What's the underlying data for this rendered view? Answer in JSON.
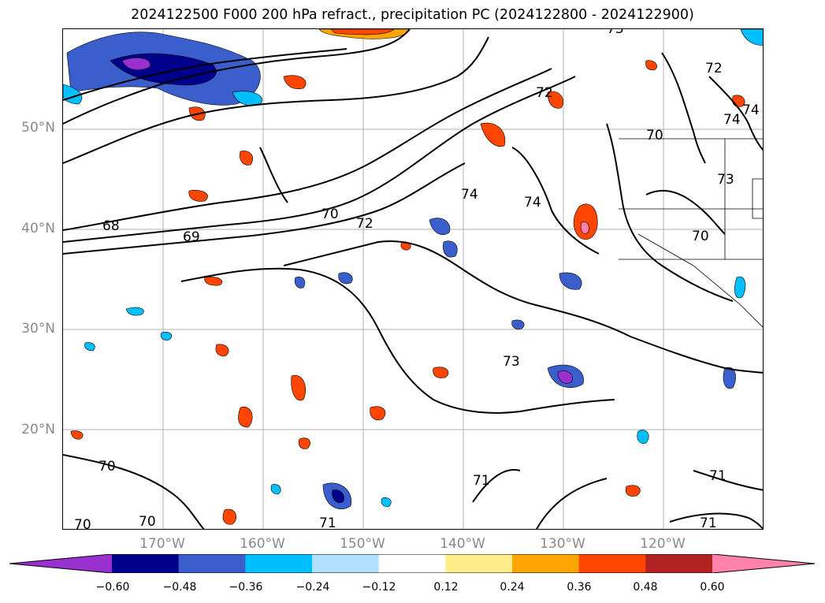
{
  "title": "2024122500 F000 200 hPa refract., precipitation PC (2024122800 - 2024122900)",
  "lat_labels": [
    "50°N",
    "40°N",
    "30°N",
    "20°N"
  ],
  "lon_labels": [
    "170°W",
    "160°W",
    "150°W",
    "140°W",
    "130°W",
    "120°W"
  ],
  "contour_labels": [
    "68",
    "69",
    "70",
    "72",
    "74",
    "74",
    "73",
    "70",
    "70",
    "70",
    "71",
    "71",
    "71",
    "72",
    "73",
    "74",
    "74",
    "70",
    "70",
    "71",
    "72",
    "73"
  ],
  "colorbar": {
    "ticks": [
      "−0.60",
      "−0.48",
      "−0.36",
      "−0.24",
      "−0.12",
      "0.12",
      "0.24",
      "0.36",
      "0.48",
      "0.60"
    ],
    "colors": [
      "#9b30d0",
      "#00008b",
      "#3a5fcd",
      "#00bfff",
      "#b0e2ff",
      "#ffffff",
      "#ffec8b",
      "#ffa500",
      "#ff4500",
      "#b22222",
      "#ff82ab"
    ]
  },
  "map": {
    "grid_lines": true,
    "coastlines": true,
    "fields": [
      "200 hPa refractivity contours",
      "precipitation PC shading"
    ]
  }
}
